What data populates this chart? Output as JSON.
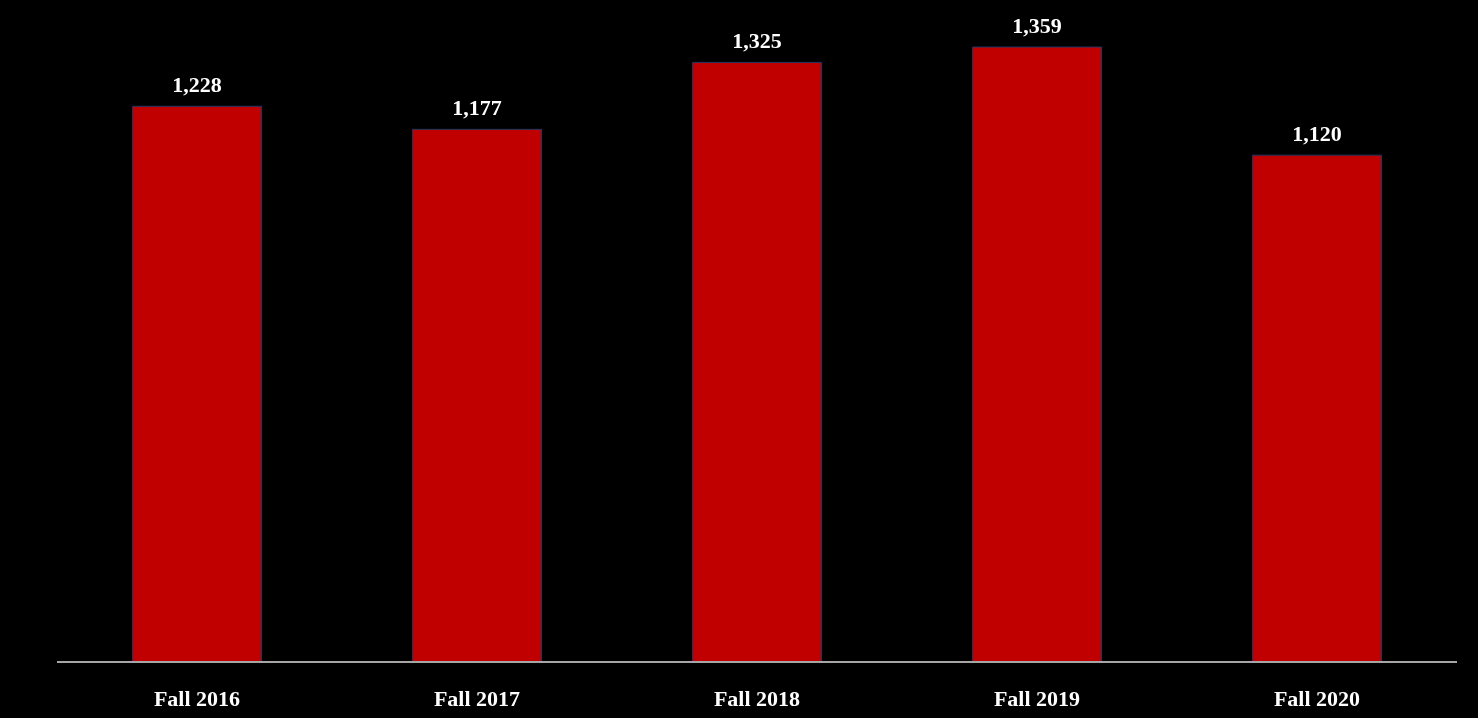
{
  "chart_data": {
    "type": "bar",
    "categories": [
      "Fall 2016",
      "Fall 2017",
      "Fall 2018",
      "Fall 2019",
      "Fall 2020"
    ],
    "values": [
      1228,
      1177,
      1325,
      1359,
      1120
    ],
    "value_labels": [
      "1,228",
      "1,177",
      "1,325",
      "1,359",
      "1,120"
    ],
    "color": "#c00000"
  }
}
